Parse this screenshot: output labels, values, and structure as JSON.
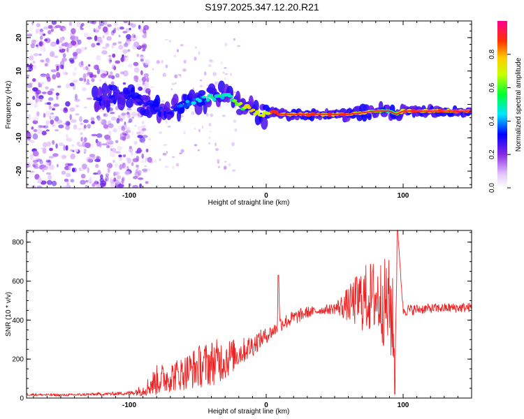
{
  "title": "S197.2025.347.12.20.R21",
  "chart_data": [
    {
      "type": "heatmap",
      "xlabel": "Height of straight line (km)",
      "ylabel": "Frequency (Hz)",
      "xlim": [
        -175,
        150
      ],
      "ylim": [
        -25,
        25
      ],
      "xticks": [
        -100,
        0,
        100
      ],
      "yticks": [
        -20,
        -10,
        0,
        10,
        20
      ],
      "colorbar": {
        "label": "Normalized spectral amplitude",
        "range": [
          0,
          1
        ],
        "ticks": [
          "0.0",
          "0.2",
          "0.4",
          "0.6",
          "0.8"
        ]
      },
      "ridge": {
        "x": [
          -120,
          -100,
          -90,
          -80,
          -70,
          -60,
          -50,
          -40,
          -30,
          -25,
          -20,
          -15,
          -10,
          -5,
          0,
          5,
          10,
          20,
          40,
          60,
          80,
          90,
          95,
          100,
          120,
          150
        ],
        "freq": [
          2,
          3,
          0,
          -1,
          -2,
          0,
          1,
          2,
          3,
          2,
          0,
          -1,
          -2,
          -3,
          -3,
          -2,
          -3,
          -3,
          -3,
          -3,
          -2,
          -2,
          -3,
          -2,
          -2,
          -2
        ],
        "amplitude": [
          0.3,
          0.3,
          0.3,
          0.35,
          0.3,
          0.4,
          0.45,
          0.5,
          0.55,
          0.6,
          0.65,
          0.7,
          0.75,
          0.8,
          0.85,
          0.85,
          0.9,
          0.9,
          0.95,
          0.85,
          0.75,
          0.6,
          0.7,
          0.85,
          0.95,
          0.95
        ]
      }
    },
    {
      "type": "line",
      "xlabel": "Height of straight line (km)",
      "ylabel": "SNR (10 * v/v)",
      "xlim": [
        -175,
        150
      ],
      "ylim": [
        0,
        860
      ],
      "xticks": [
        -100,
        0,
        100
      ],
      "yticks": [
        0,
        200,
        400,
        600,
        800
      ],
      "series": [
        {
          "name": "SNR",
          "color": "#ee2222",
          "x": [
            -175,
            -150,
            -120,
            -100,
            -90,
            -80,
            -70,
            -60,
            -50,
            -40,
            -30,
            -20,
            -10,
            -5,
            0,
            8,
            9,
            10,
            20,
            30,
            40,
            50,
            60,
            70,
            80,
            90,
            92,
            94,
            96,
            100,
            120,
            150
          ],
          "y": [
            18,
            15,
            20,
            25,
            40,
            90,
            110,
            130,
            160,
            180,
            200,
            230,
            270,
            300,
            320,
            360,
            630,
            380,
            410,
            440,
            450,
            460,
            480,
            510,
            520,
            470,
            430,
            150,
            860,
            450,
            460,
            465
          ],
          "spread": [
            6,
            6,
            8,
            10,
            30,
            80,
            80,
            90,
            110,
            120,
            110,
            70,
            60,
            50,
            40,
            35,
            0,
            40,
            40,
            30,
            20,
            30,
            90,
            170,
            200,
            250,
            280,
            0,
            0,
            30,
            25,
            25
          ]
        }
      ]
    }
  ]
}
